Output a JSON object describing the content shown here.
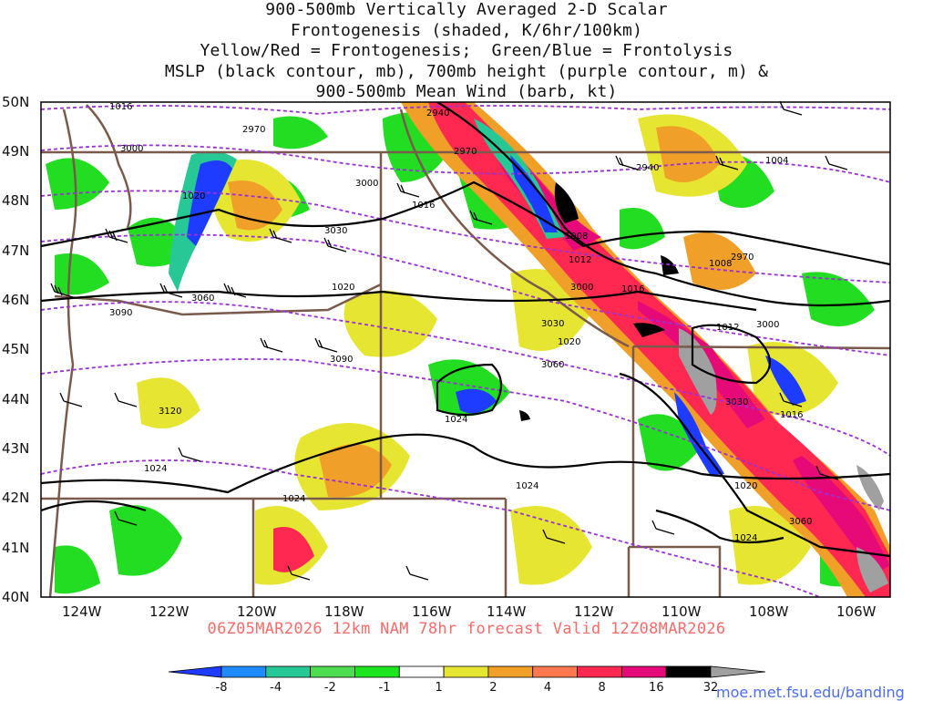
{
  "title": {
    "lines": [
      "900-500mb Vertically Averaged 2-D Scalar",
      "Frontogenesis (shaded, K/6hr/100km)",
      "Yellow/Red = Frontogenesis;  Green/Blue = Frontolysis",
      "MSLP (black contour, mb), 700mb height (purple contour, m) &",
      "900-500mb Mean Wind (barb, kt)"
    ]
  },
  "map": {
    "lat_labels": [
      "50N",
      "49N",
      "48N",
      "47N",
      "46N",
      "45N",
      "44N",
      "43N",
      "42N",
      "41N",
      "40N"
    ],
    "lon_labels": [
      "124W",
      "122W",
      "120W",
      "118W",
      "116W",
      "114W",
      "112W",
      "110W",
      "108W",
      "106W"
    ],
    "pressure_labels": [
      "1016",
      "1020",
      "1016",
      "1008",
      "1012",
      "1016",
      "1008",
      "1004",
      "1012",
      "1020",
      "1016",
      "1024",
      "1024",
      "1020",
      "1024",
      "1024",
      "1020",
      "1024"
    ],
    "height_labels": [
      "2970",
      "3000",
      "2940",
      "2970",
      "2940",
      "3000",
      "3030",
      "3060",
      "3090",
      "3000",
      "3030",
      "3060",
      "3090",
      "3120",
      "3000",
      "2970",
      "3030",
      "3060"
    ],
    "colors": {
      "mslp_contour": "#000000",
      "height_contour": "#9b30d8",
      "border": "#7a5a4a",
      "barb": "#000000"
    }
  },
  "colorbar": {
    "labels": [
      "-8",
      "-4",
      "-2",
      "-1",
      "1",
      "2",
      "4",
      "8",
      "16",
      "32"
    ],
    "colors": [
      "#1e3cff",
      "#1e8cff",
      "#28c896",
      "#50dc50",
      "#1ee61e",
      "#ffffff",
      "#e6e632",
      "#f0a028",
      "#ff7850",
      "#ff2850",
      "#e60a78",
      "#000000",
      "#a0a0a0"
    ]
  },
  "footer": {
    "forecast_text": "06Z05MAR2026 12km NAM 78hr forecast Valid 12Z08MAR2026",
    "credit": "moe.met.fsu.edu/banding"
  }
}
